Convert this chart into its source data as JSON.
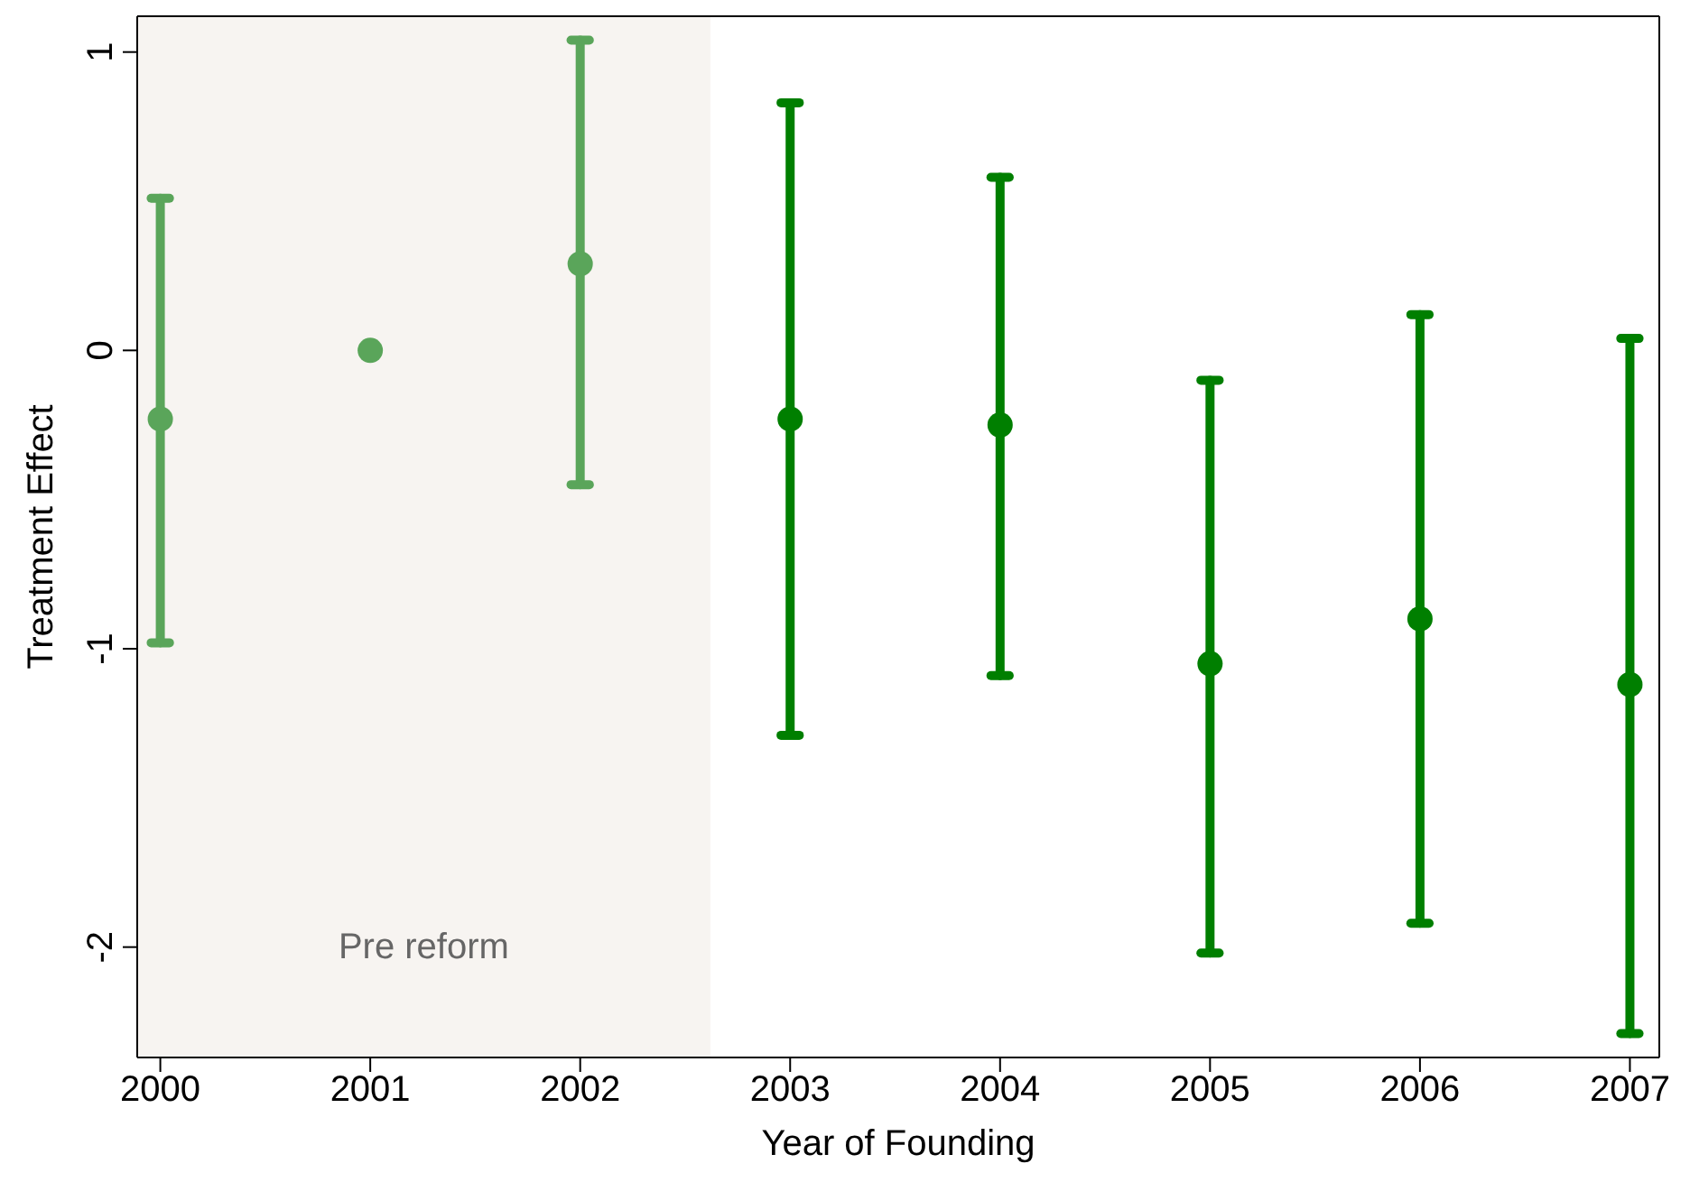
{
  "chart_data": {
    "type": "scatter",
    "xlabel": "Year of Founding",
    "ylabel": "Treatment Effect",
    "x": [
      2000,
      2001,
      2002,
      2003,
      2004,
      2005,
      2006,
      2007
    ],
    "values": [
      -0.23,
      0,
      0.29,
      -0.23,
      -0.25,
      -1.05,
      -0.9,
      -1.12
    ],
    "errors": [
      [
        -0.98,
        0.51
      ],
      null,
      [
        -0.45,
        1.04
      ],
      [
        -1.29,
        0.83
      ],
      [
        -1.09,
        0.58
      ],
      [
        -2.02,
        -0.1
      ],
      [
        -1.92,
        0.12
      ],
      [
        -2.29,
        0.04
      ]
    ],
    "colors": [
      "#5aa55a",
      "#5aa55a",
      "#5aa55a",
      "#007f00",
      "#007f00",
      "#007f00",
      "#007f00",
      "#007f00"
    ],
    "xlim": [
      1999.89,
      2007.14
    ],
    "xticks": [
      2000,
      2001,
      2002,
      2003,
      2004,
      2005,
      2006,
      2007
    ],
    "ylim": [
      -2.37,
      1.12
    ],
    "yticks": [
      -2,
      -1,
      0,
      1
    ],
    "bands": [
      {
        "axis": "x",
        "from": 1999.89,
        "to": 2002.62,
        "label": "Pre reform",
        "color": "#f7f4f1"
      }
    ],
    "marker": "circle",
    "grid": false,
    "legend": false
  }
}
